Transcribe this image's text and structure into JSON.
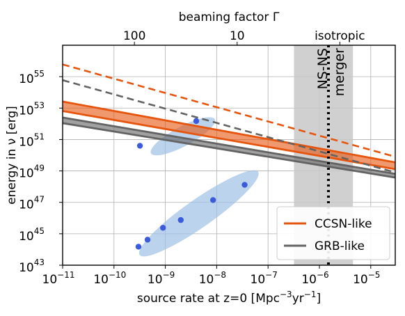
{
  "chart_data": {
    "type": "line",
    "title": "",
    "xlabel": "source rate at z=0 [Mpc⁻³yr⁻¹]",
    "ylabel": "energy in ν [erg]",
    "top_xlabel": "beaming factor Γ",
    "xscale": "log",
    "yscale": "log",
    "xlim": [
      1e-11,
      3e-05
    ],
    "ylim": [
      1e+43,
      1e+57
    ],
    "grid": true,
    "x_ticks": [
      {
        "exp": -11,
        "label": "10",
        "sup": "−11"
      },
      {
        "exp": -10,
        "label": "10",
        "sup": "−10"
      },
      {
        "exp": -9,
        "label": "10",
        "sup": "−9"
      },
      {
        "exp": -8,
        "label": "10",
        "sup": "−8"
      },
      {
        "exp": -7,
        "label": "10",
        "sup": "−7"
      },
      {
        "exp": -6,
        "label": "10",
        "sup": "−6"
      },
      {
        "exp": -5,
        "label": "10",
        "sup": "−5"
      }
    ],
    "y_ticks": [
      {
        "exp": 43,
        "label": "10",
        "sup": "43"
      },
      {
        "exp": 45,
        "label": "10",
        "sup": "45"
      },
      {
        "exp": 47,
        "label": "10",
        "sup": "47"
      },
      {
        "exp": 49,
        "label": "10",
        "sup": "49"
      },
      {
        "exp": 51,
        "label": "10",
        "sup": "51"
      },
      {
        "exp": 53,
        "label": "10",
        "sup": "53"
      },
      {
        "exp": 55,
        "label": "10",
        "sup": "55"
      }
    ],
    "top_ticks": [
      {
        "label": "100",
        "x": 2.5e-10
      },
      {
        "label": "10",
        "x": 2.5e-08
      },
      {
        "label": "isotropic",
        "x": 2.5e-06
      }
    ],
    "shaded_region": {
      "x_range": [
        3.2e-07,
        4.5e-06
      ],
      "color": "#c8c8c8"
    },
    "vertical_line": {
      "x": 1.5e-06,
      "style": "dotted",
      "label_line1": "NS-NS",
      "label_line2": "merger"
    },
    "series": [
      {
        "name": "CCSN-like",
        "color": "#e6550d",
        "band_upper": [
          [
            1e-11,
            2.6e+53
          ],
          [
            3e-05,
            3.5e+49
          ]
        ],
        "band_lower": [
          [
            1e-11,
            6.5e+52
          ],
          [
            3e-05,
            1.3e+49
          ]
        ],
        "dashed": [
          [
            1e-11,
            6e+55
          ],
          [
            3e-05,
            8e+49
          ]
        ]
      },
      {
        "name": "GRB-like",
        "color": "#636363",
        "band_upper": [
          [
            1e-11,
            2.5e+52
          ],
          [
            3e-05,
            6.5e+48
          ]
        ],
        "band_lower": [
          [
            1e-11,
            1.1e+52
          ],
          [
            3e-05,
            3.8e+48
          ]
        ],
        "dashed": [
          [
            1e-11,
            6e+54
          ],
          [
            3e-05,
            8e+48
          ]
        ]
      }
    ],
    "points": [
      [
        3.2e-10,
        4e+50
      ],
      [
        4e-09,
        1.5e+52
      ],
      [
        3e-10,
        1.5e+44
      ],
      [
        4.5e-10,
        4.2e+44
      ],
      [
        9e-10,
        2.4e+45
      ],
      [
        2e-09,
        7.5e+45
      ],
      [
        8.5e-09,
        1.4e+47
      ],
      [
        3.5e-08,
        1.3e+48
      ]
    ],
    "point_color": "#3b5bdb",
    "ellipses": [
      {
        "center": [
          2.2e-09,
          1.6e+51
        ],
        "color": "#9ec0e4"
      },
      {
        "center": [
          4.5e-09,
          2e+46
        ],
        "color": "#9ec0e4"
      }
    ],
    "legend": {
      "position": "lower-right",
      "entries": [
        {
          "label": "CCSN-like",
          "color": "#e6550d"
        },
        {
          "label": "GRB-like",
          "color": "#636363"
        }
      ]
    }
  }
}
